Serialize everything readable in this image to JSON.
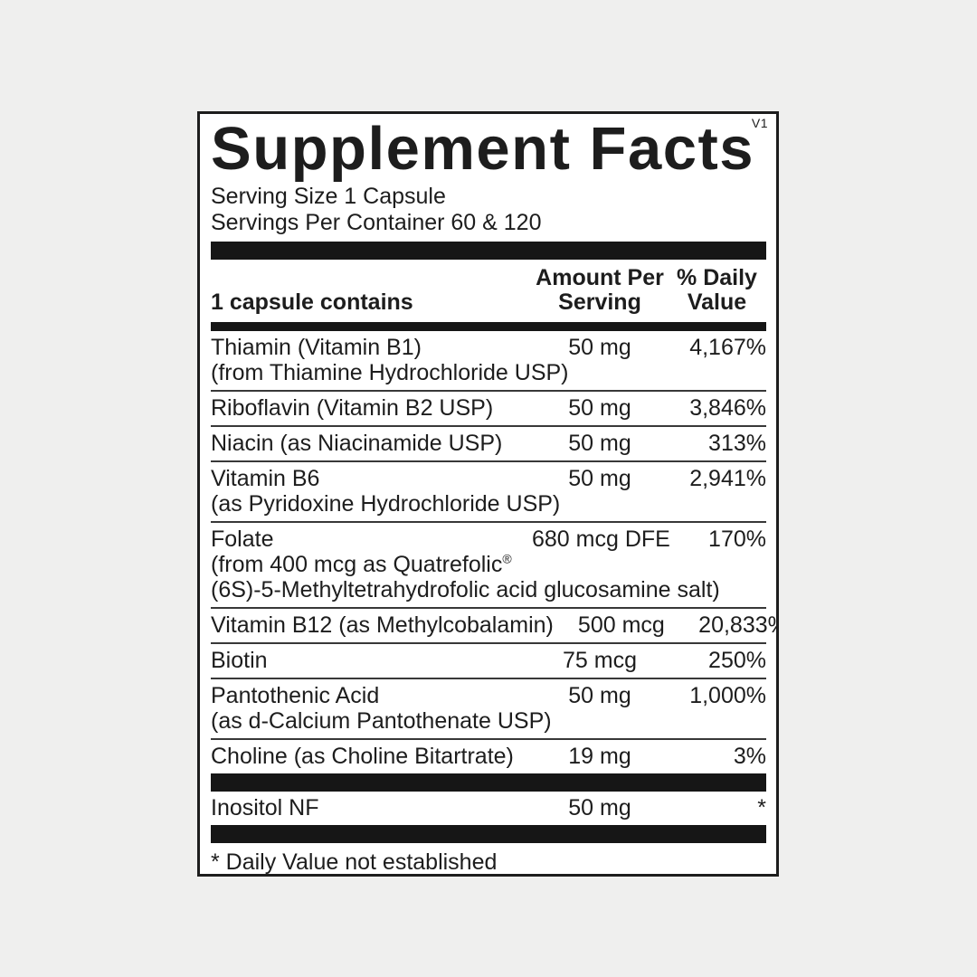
{
  "colors": {
    "page_background": "#efefee",
    "panel_background": "#ffffff",
    "ink": "#1d1d1d",
    "bar": "#161616"
  },
  "panel": {
    "version": "V1",
    "title": "Supplement Facts",
    "serving_size": "Serving Size 1 Capsule",
    "servings_per_container": "Servings Per Container 60 & 120"
  },
  "table": {
    "header": {
      "col_nutrient": "1 capsule contains",
      "col_amount_line1": "Amount Per",
      "col_amount_line2": "Serving",
      "col_dv_line1": "% Daily",
      "col_dv_line2": "Value"
    },
    "rows": [
      {
        "name": "Thiamin (Vitamin B1)",
        "amount": "50 mg",
        "dv": "4,167%",
        "sub1": "(from Thiamine Hydrochloride USP)"
      },
      {
        "name": "Riboflavin (Vitamin B2 USP)",
        "amount": "50 mg",
        "dv": "3,846%"
      },
      {
        "name": "Niacin (as Niacinamide USP)",
        "amount": "50 mg",
        "dv": "313%"
      },
      {
        "name": "Vitamin B6",
        "amount": "50 mg",
        "dv": "2,941%",
        "sub1": "(as Pyridoxine Hydrochloride USP)"
      },
      {
        "name": "Folate",
        "amount": "680 mcg DFE",
        "dv": "170%",
        "sub1": "(from 400 mcg as Quatrefolic",
        "sub1_sup": "®",
        "sub2": "(6S)-5-Methyltetrahydrofolic acid glucosamine salt)"
      },
      {
        "name": "Vitamin B12 (as Methylcobalamin)",
        "amount": "500 mcg",
        "dv": "20,833%"
      },
      {
        "name": "Biotin",
        "amount": "75 mcg",
        "dv": "250%"
      },
      {
        "name": "Pantothenic Acid",
        "amount": "50 mg",
        "dv": "1,000%",
        "sub1": "(as d-Calcium Pantothenate USP)"
      },
      {
        "name": "Choline (as Choline Bitartrate)",
        "amount": "19 mg",
        "dv": "3%"
      }
    ],
    "secondary_row": {
      "name": "Inositol NF",
      "amount": "50 mg",
      "dv": "*"
    }
  },
  "footnote": "* Daily Value not established"
}
